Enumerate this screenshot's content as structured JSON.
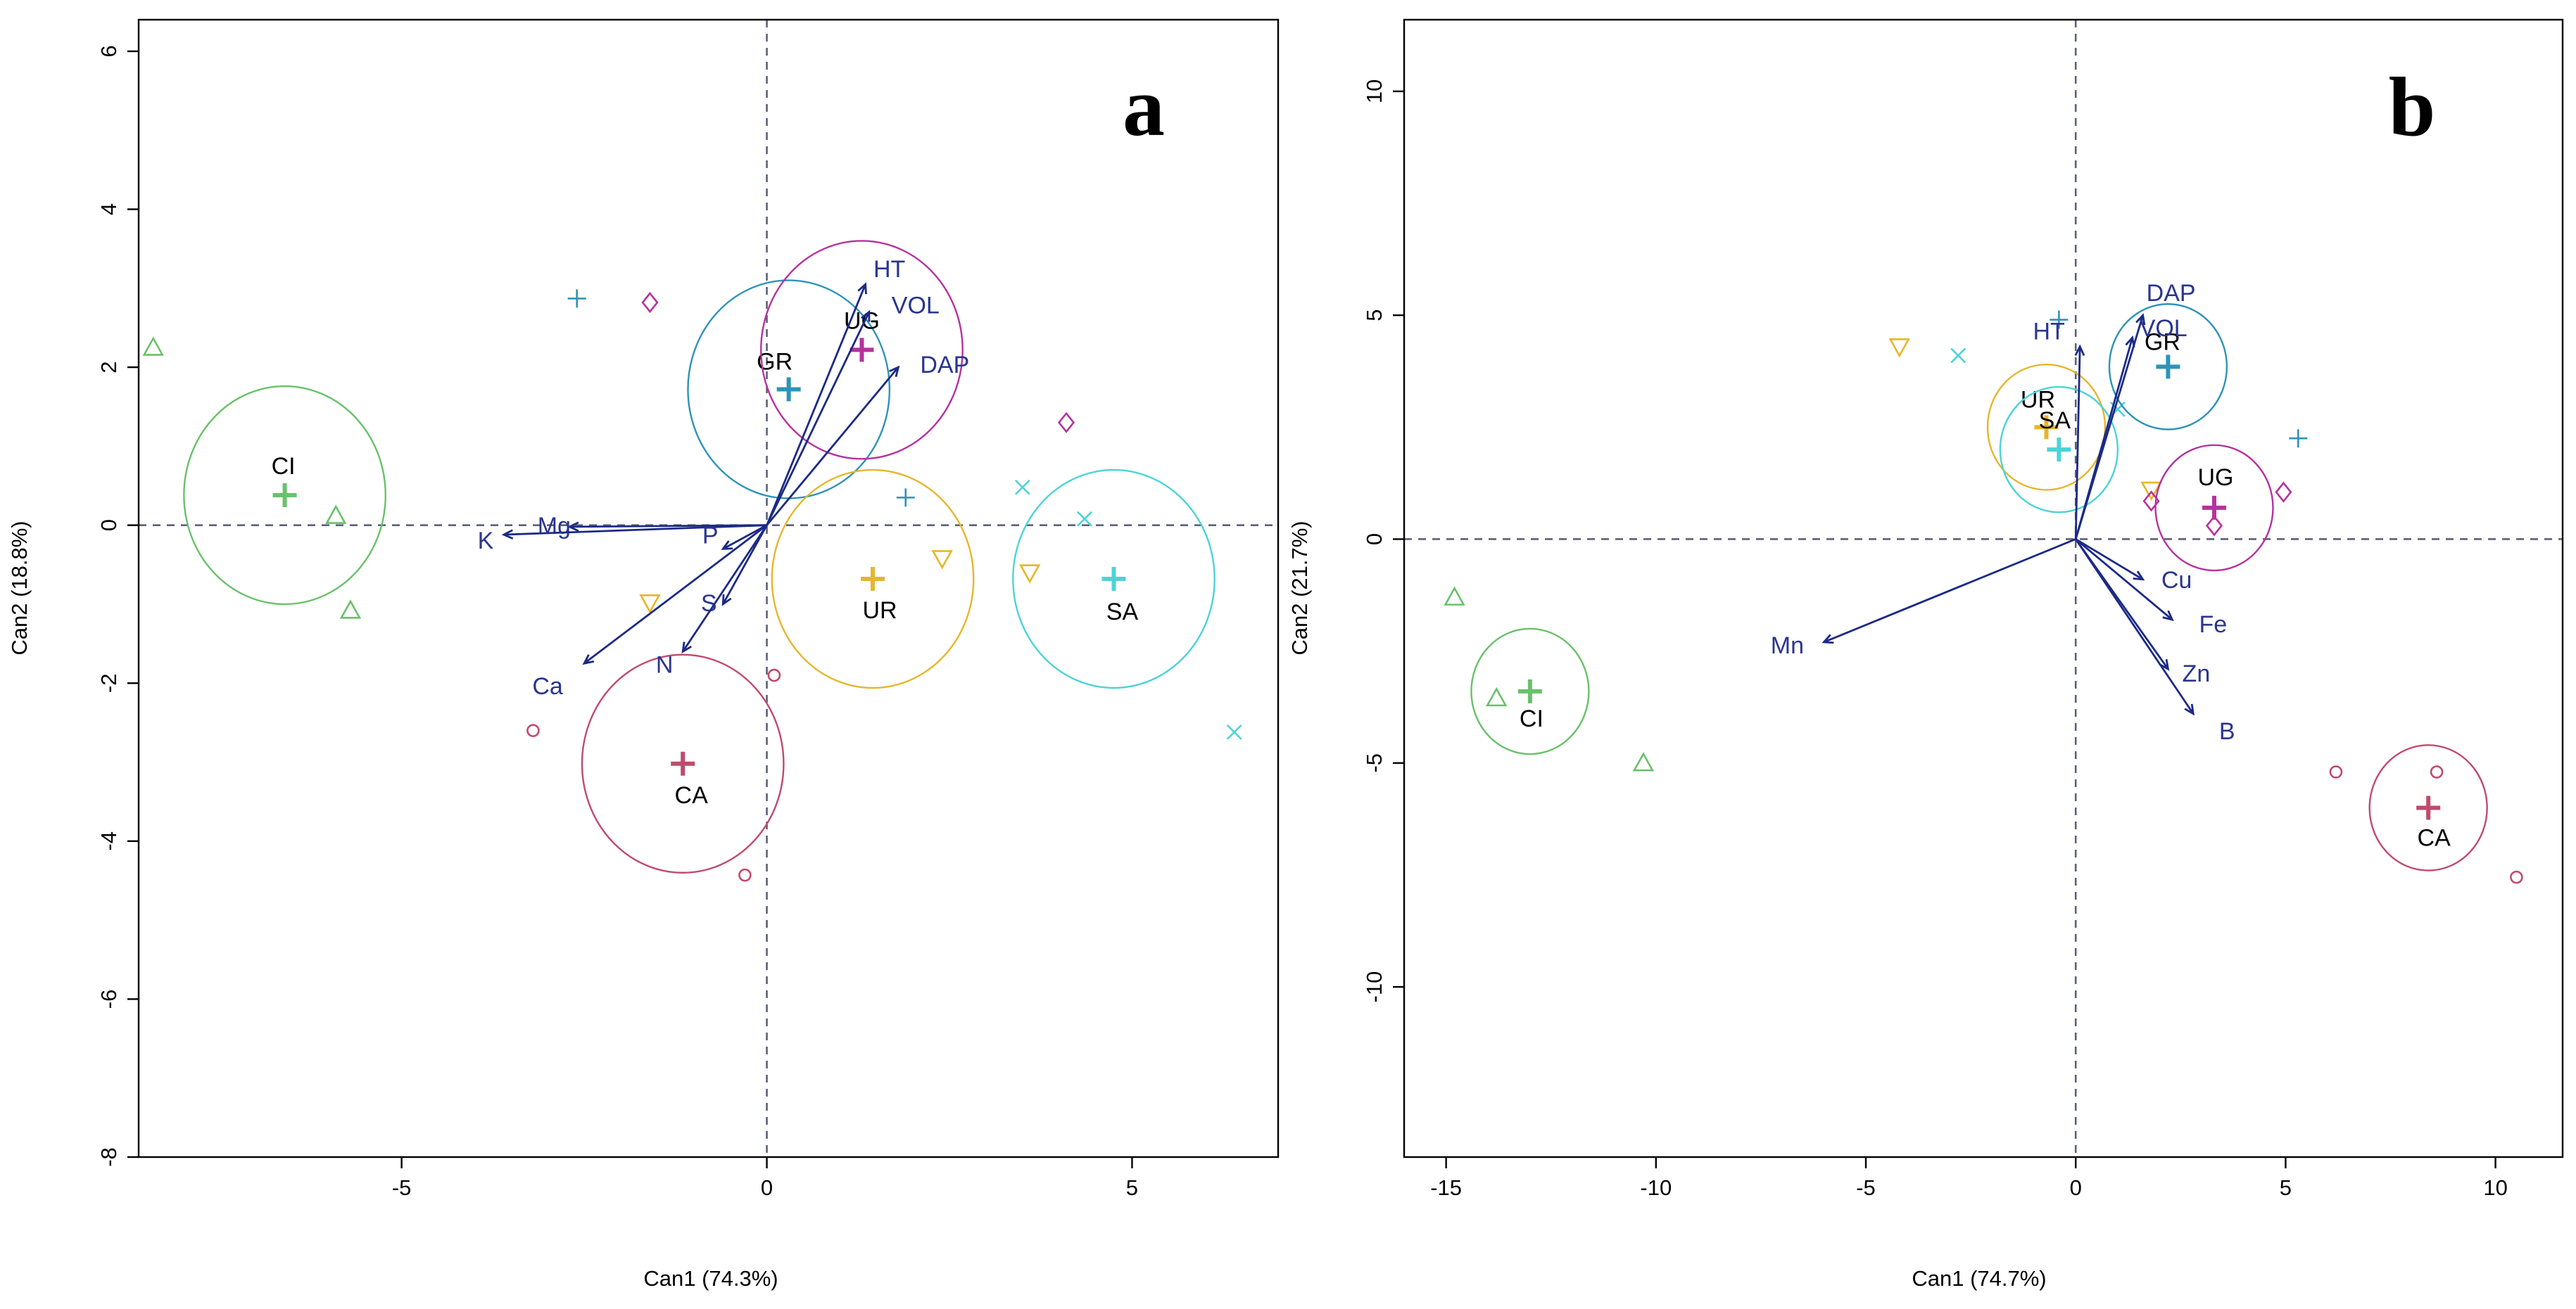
{
  "chart_data": [
    {
      "type": "scatter",
      "panel_label": "a",
      "xlabel": "Can1 (74.3%)",
      "ylabel": "Can2 (18.8%)",
      "xlim": [
        -8.6,
        7.0
      ],
      "ylim": [
        -8.0,
        6.4
      ],
      "xticks": [
        -5,
        0,
        5
      ],
      "yticks": [
        -8,
        -6,
        -4,
        -2,
        0,
        2,
        4,
        6
      ],
      "grid": false,
      "variables": [
        {
          "name": "HT",
          "x": 1.35,
          "y": 3.05
        },
        {
          "name": "VOL",
          "x": 1.4,
          "y": 2.7
        },
        {
          "name": "DAP",
          "x": 1.8,
          "y": 2.0
        },
        {
          "name": "Mg",
          "x": -2.7,
          "y": -0.02
        },
        {
          "name": "K",
          "x": -3.6,
          "y": -0.12
        },
        {
          "name": "P",
          "x": -0.6,
          "y": -0.3
        },
        {
          "name": "S",
          "x": -0.6,
          "y": -1.0
        },
        {
          "name": "Ca",
          "x": -2.5,
          "y": -1.75
        },
        {
          "name": "N",
          "x": -1.15,
          "y": -1.6
        }
      ],
      "groups": [
        {
          "name": "CI",
          "color": "#69c16a",
          "centroid": [
            -6.6,
            0.38
          ],
          "radius": 1.38,
          "symbol": "triangle",
          "points": [
            [
              -8.4,
              2.25
            ],
            [
              -5.9,
              0.12
            ],
            [
              -5.7,
              -1.08
            ]
          ]
        },
        {
          "name": "GR",
          "color": "#2e93b8",
          "centroid": [
            0.3,
            1.72
          ],
          "radius": 1.38,
          "symbol": "plus",
          "points": [
            [
              -2.6,
              2.87
            ],
            [
              1.9,
              0.35
            ]
          ]
        },
        {
          "name": "UG",
          "color": "#b6329e",
          "centroid": [
            1.3,
            2.22
          ],
          "radius": 1.38,
          "symbol": "diamond",
          "points": [
            [
              -1.6,
              2.82
            ],
            [
              4.1,
              1.3
            ]
          ]
        },
        {
          "name": "UR",
          "color": "#e6b62b",
          "centroid": [
            1.45,
            -0.68
          ],
          "radius": 1.38,
          "symbol": "triangle-down",
          "points": [
            [
              -1.6,
              -0.98
            ],
            [
              2.4,
              -0.42
            ],
            [
              3.6,
              -0.6
            ]
          ]
        },
        {
          "name": "SA",
          "color": "#4cd3d8",
          "centroid": [
            4.75,
            -0.68
          ],
          "radius": 1.38,
          "symbol": "x",
          "points": [
            [
              3.5,
              0.48
            ],
            [
              4.35,
              0.08
            ],
            [
              6.4,
              -2.62
            ]
          ]
        },
        {
          "name": "CA",
          "color": "#c04a6e",
          "centroid": [
            -1.15,
            -3.02
          ],
          "radius": 1.38,
          "symbol": "circle",
          "points": [
            [
              -3.2,
              -2.6
            ],
            [
              0.1,
              -1.9
            ],
            [
              -0.3,
              -4.43
            ]
          ]
        }
      ]
    },
    {
      "type": "scatter",
      "panel_label": "b",
      "xlabel": "Can1 (74.7%)",
      "ylabel": "Can2 (21.7%)",
      "xlim": [
        -16.0,
        11.6
      ],
      "ylim": [
        -13.8,
        11.6
      ],
      "xticks": [
        -15,
        -10,
        -5,
        0,
        5,
        10
      ],
      "yticks": [
        -10,
        -5,
        0,
        5,
        10
      ],
      "grid": false,
      "variables": [
        {
          "name": "DAP",
          "x": 1.6,
          "y": 5.0
        },
        {
          "name": "VOL",
          "x": 1.35,
          "y": 4.5
        },
        {
          "name": "HT",
          "x": 0.1,
          "y": 4.3
        },
        {
          "name": "Cu",
          "x": 1.6,
          "y": -0.9
        },
        {
          "name": "Fe",
          "x": 2.3,
          "y": -1.8
        },
        {
          "name": "Zn",
          "x": 2.2,
          "y": -2.9
        },
        {
          "name": "B",
          "x": 2.8,
          "y": -3.9
        },
        {
          "name": "Mn",
          "x": -6.0,
          "y": -2.3
        }
      ],
      "groups": [
        {
          "name": "UR",
          "color": "#e6b62b",
          "centroid": [
            -0.7,
            2.5
          ],
          "radius": 1.4,
          "symbol": "triangle-down",
          "points": [
            [
              -4.2,
              4.3
            ],
            [
              1.8,
              1.1
            ]
          ]
        },
        {
          "name": "SA",
          "color": "#4cd3d8",
          "centroid": [
            -0.4,
            2.0
          ],
          "radius": 1.4,
          "symbol": "x",
          "points": [
            [
              -2.8,
              4.1
            ],
            [
              1.0,
              2.9
            ]
          ]
        },
        {
          "name": "GR",
          "color": "#2e93b8",
          "centroid": [
            2.2,
            3.85
          ],
          "radius": 1.4,
          "symbol": "plus",
          "points": [
            [
              -0.4,
              4.9
            ],
            [
              5.3,
              2.25
            ]
          ]
        },
        {
          "name": "UG",
          "color": "#b6329e",
          "centroid": [
            3.3,
            0.7
          ],
          "radius": 1.4,
          "symbol": "diamond",
          "points": [
            [
              1.8,
              0.85
            ],
            [
              3.3,
              0.3
            ],
            [
              4.95,
              1.05
            ]
          ]
        },
        {
          "name": "CI",
          "color": "#69c16a",
          "centroid": [
            -13.0,
            -3.4
          ],
          "radius": 1.4,
          "symbol": "triangle",
          "points": [
            [
              -14.8,
              -1.3
            ],
            [
              -13.8,
              -3.55
            ],
            [
              -10.3,
              -5.0
            ]
          ]
        },
        {
          "name": "CA",
          "color": "#c04a6e",
          "centroid": [
            8.4,
            -6.0
          ],
          "radius": 1.4,
          "symbol": "circle",
          "points": [
            [
              6.2,
              -5.2
            ],
            [
              8.6,
              -5.2
            ],
            [
              10.5,
              -7.55
            ]
          ]
        }
      ]
    }
  ]
}
